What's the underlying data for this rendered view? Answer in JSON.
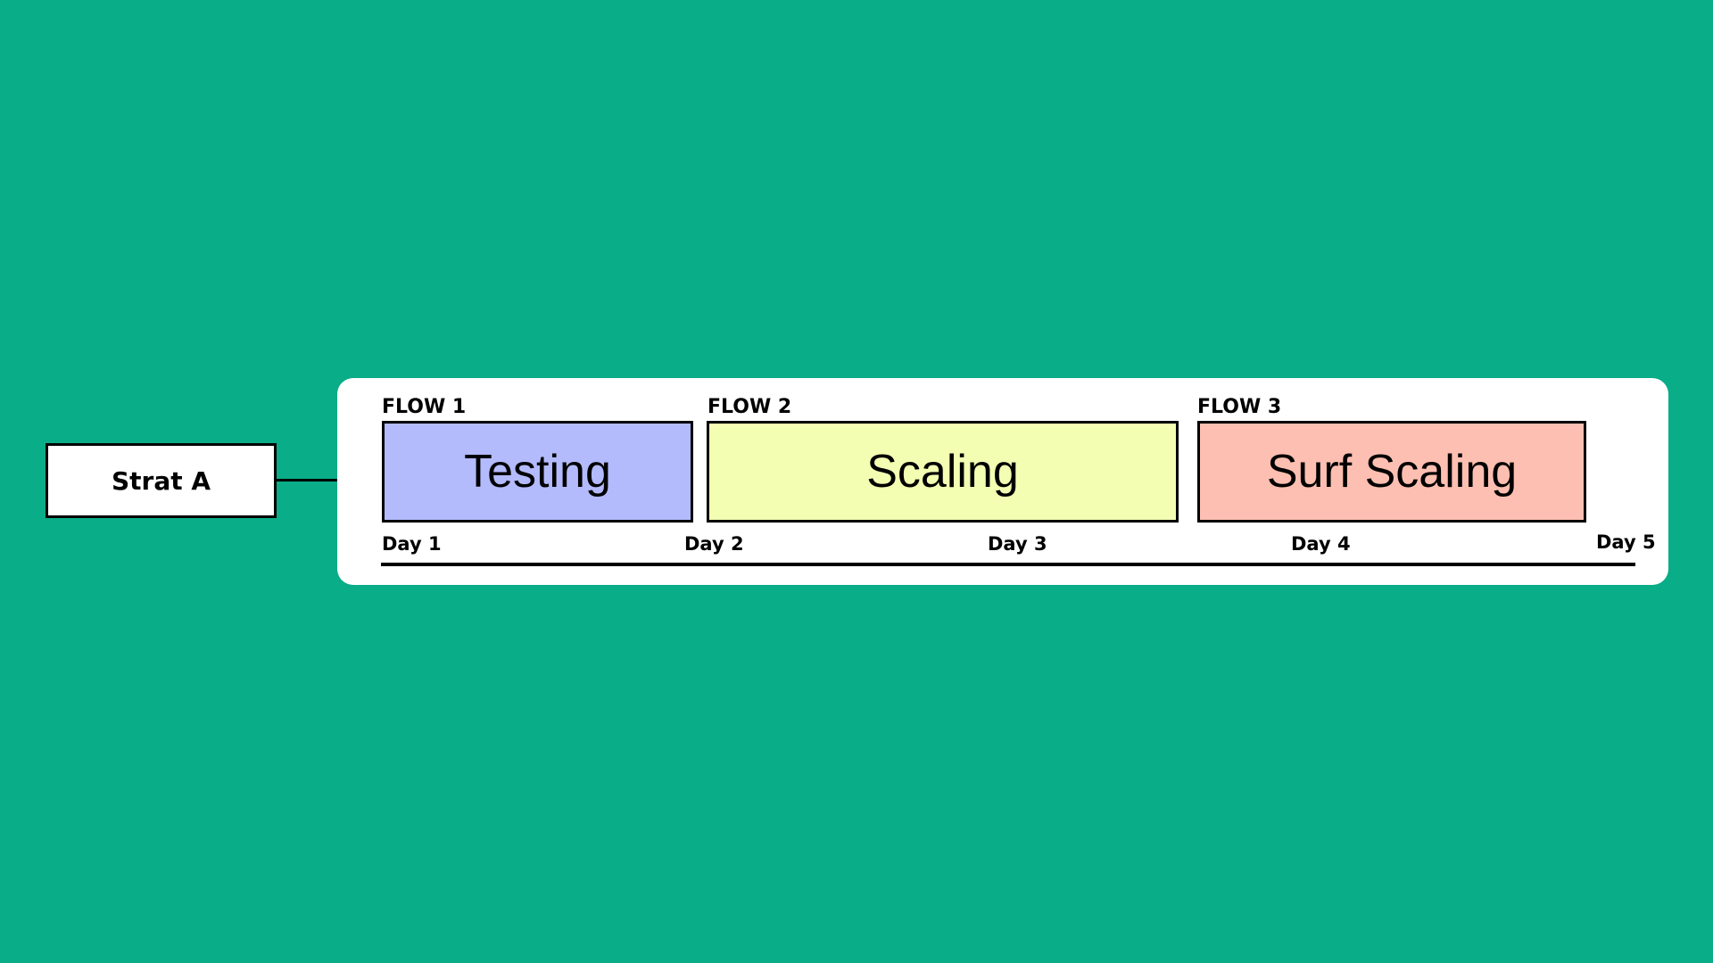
{
  "strategy": {
    "label": "Strat A"
  },
  "flows": [
    {
      "flow_label": "FLOW 1",
      "phase": "Testing",
      "color": "#b3bbfd"
    },
    {
      "flow_label": "FLOW 2",
      "phase": "Scaling",
      "color": "#f3feb3"
    },
    {
      "flow_label": "FLOW 3",
      "phase": "Surf Scaling",
      "color": "#fdbfb1"
    }
  ],
  "timeline": {
    "days": [
      "Day 1",
      "Day 2",
      "Day 3",
      "Day 4",
      "Day 5"
    ]
  },
  "colors": {
    "background": "#09ad87",
    "panel": "#ffffff",
    "border": "#000000"
  }
}
